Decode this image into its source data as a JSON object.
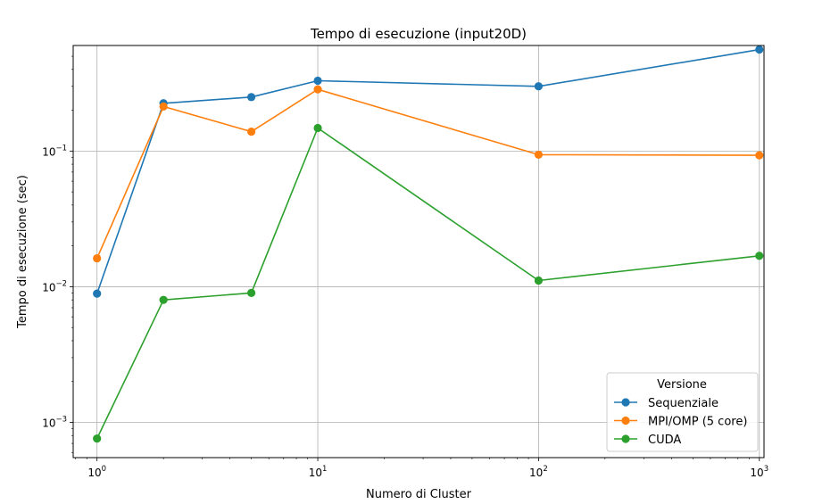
{
  "chart_data": {
    "type": "line",
    "title": "Tempo di esecuzione (input20D)",
    "xlabel": "Numero di Cluster",
    "ylabel": "Tempo di esecuzione (sec)",
    "xscale": "log",
    "yscale": "log",
    "xlim": [
      0.78,
      1050
    ],
    "ylim": [
      0.00055,
      0.6
    ],
    "grid": true,
    "x": [
      1,
      2,
      5,
      10,
      100,
      1000
    ],
    "x_ticks": [
      {
        "base": "10",
        "exp": "0",
        "value": 1
      },
      {
        "base": "10",
        "exp": "1",
        "value": 10
      },
      {
        "base": "10",
        "exp": "2",
        "value": 100
      },
      {
        "base": "10",
        "exp": "3",
        "value": 1000
      }
    ],
    "y_ticks": [
      {
        "base": "10",
        "exp": "−3",
        "value": 0.001
      },
      {
        "base": "10",
        "exp": "−2",
        "value": 0.01
      },
      {
        "base": "10",
        "exp": "−1",
        "value": 0.1
      }
    ],
    "legend": {
      "title": "Versione",
      "placement": "lower right"
    },
    "series": [
      {
        "name": "Sequenziale",
        "color": "#1f77b4",
        "values": [
          0.0089,
          0.225,
          0.25,
          0.33,
          0.3,
          0.56
        ]
      },
      {
        "name": "MPI/OMP (5 core)",
        "color": "#ff7f0e",
        "values": [
          0.0162,
          0.213,
          0.139,
          0.285,
          0.094,
          0.093
        ]
      },
      {
        "name": "CUDA",
        "color": "#2ca02c",
        "values": [
          0.00076,
          0.008,
          0.009,
          0.148,
          0.0111,
          0.0169
        ]
      }
    ]
  }
}
